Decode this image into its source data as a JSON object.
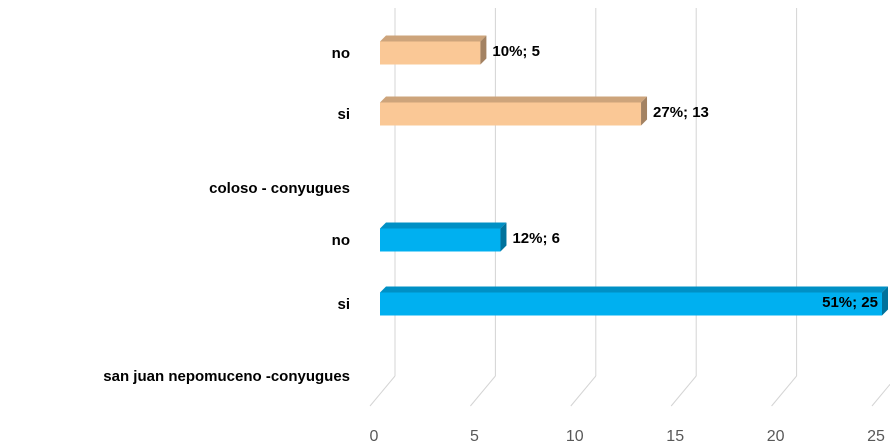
{
  "chart_data": {
    "type": "bar",
    "orientation": "horizontal",
    "style": "3d",
    "categories": [
      "no",
      "si",
      "coloso - conyugues",
      "no",
      "si",
      "san juan nepomuceno -conyugues"
    ],
    "values": [
      5,
      13,
      null,
      6,
      25,
      null
    ],
    "data_labels": [
      "10%; 5",
      "27%; 13",
      "",
      "12%; 6",
      "51%; 25",
      ""
    ],
    "bar_colors": [
      "#FAC896",
      "#FAC896",
      null,
      "#00B0F0",
      "#00B0F0",
      null
    ],
    "xlim": [
      0,
      25
    ],
    "xticks": [
      0,
      5,
      10,
      15,
      20,
      25
    ],
    "grid": true,
    "legend": "none"
  }
}
